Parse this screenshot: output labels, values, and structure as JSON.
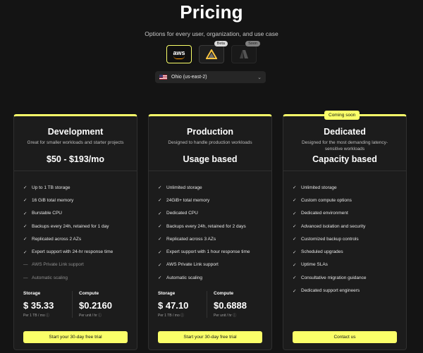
{
  "page": {
    "title": "Pricing",
    "subtitle": "Options for every user, organization, and use case"
  },
  "providers": [
    {
      "name": "aws",
      "label": "aws",
      "badge": "",
      "active": true
    },
    {
      "name": "gcp",
      "label": "",
      "badge": "Beta",
      "active": false
    },
    {
      "name": "azure",
      "label": "",
      "badge": "Soon",
      "active": false
    }
  ],
  "region": {
    "value": "Ohio (us-east-2)"
  },
  "cards": [
    {
      "name": "Development",
      "desc": "Great for smaller workloads and starter projects",
      "price": "$50 - $193/mo",
      "features": [
        {
          "text": "Up to 1 TB storage",
          "enabled": true
        },
        {
          "text": "16 GiB total memory",
          "enabled": true
        },
        {
          "text": "Burstable CPU",
          "enabled": true
        },
        {
          "text": "Backups every 24h, retained for 1 day",
          "enabled": true
        },
        {
          "text": "Replicated across 2 AZs",
          "enabled": true
        },
        {
          "text": "Expert support with 24-hr response time",
          "enabled": true
        },
        {
          "text": "AWS Private Link support",
          "enabled": false
        },
        {
          "text": "Automatic scaling",
          "enabled": false
        }
      ],
      "storage": {
        "label": "Storage",
        "value": "$ 35.33",
        "unit": "Per 1 TB / mo"
      },
      "compute": {
        "label": "Compute",
        "value": "$0.2160",
        "unit": "Per unit / hr"
      },
      "cta": "Start your 30-day free trial"
    },
    {
      "name": "Production",
      "desc": "Designed to handle production workloads",
      "price": "Usage based",
      "features": [
        {
          "text": "Unlimited storage",
          "enabled": true
        },
        {
          "text": "24GiB+ total memory",
          "enabled": true
        },
        {
          "text": "Dedicated CPU",
          "enabled": true
        },
        {
          "text": "Backups every 24h, retained for 2 days",
          "enabled": true
        },
        {
          "text": "Replicated across 3 AZs",
          "enabled": true
        },
        {
          "text": "Expert support with 1 hour response time",
          "enabled": true
        },
        {
          "text": "AWS Private Link support",
          "enabled": true
        },
        {
          "text": "Automatic scaling",
          "enabled": true
        }
      ],
      "storage": {
        "label": "Storage",
        "value": "$ 47.10",
        "unit": "Per 1 TB / mo"
      },
      "compute": {
        "label": "Compute",
        "value": "$0.6888",
        "unit": "Per unit / hr"
      },
      "cta": "Start your 30-day free trial"
    },
    {
      "name": "Dedicated",
      "badge": "Coming soon",
      "desc": "Designed for the most demanding latency-sensitive workloads",
      "price": "Capacity based",
      "features": [
        {
          "text": "Unlimited storage",
          "enabled": true
        },
        {
          "text": "Custom compute options",
          "enabled": true
        },
        {
          "text": "Dedicated environment",
          "enabled": true
        },
        {
          "text": "Advanced isolation and security",
          "enabled": true
        },
        {
          "text": "Customized backup controls",
          "enabled": true
        },
        {
          "text": "Scheduled upgrades",
          "enabled": true
        },
        {
          "text": "Uptime SLAs",
          "enabled": true
        },
        {
          "text": "Consultative migration guidance",
          "enabled": true
        },
        {
          "text": "Dedicated support engineers",
          "enabled": true
        }
      ],
      "cta": "Contact us"
    }
  ],
  "colors": {
    "accent": "#faff69",
    "background": "#141414",
    "card": "#1c1c1c"
  },
  "icons": {
    "check": "check-icon",
    "info": "info-icon",
    "chevron": "chevron-down-icon"
  }
}
